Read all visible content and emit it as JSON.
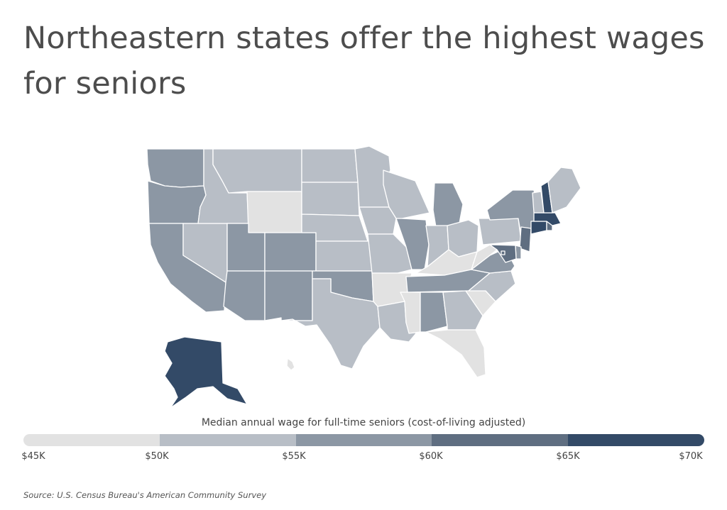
{
  "title": "Northeastern states offer the highest wages for seniors",
  "legend": {
    "title": "Median annual wage for full-time seniors (cost-of-living adjusted)",
    "ticks": [
      "$45K",
      "$50K",
      "$55K",
      "$60K",
      "$65K",
      "$70K"
    ],
    "colors": [
      "#e2e2e2",
      "#b8bec6",
      "#8c97a4",
      "#5f6e81",
      "#334a67"
    ]
  },
  "source": "Source:  U.S. Census Bureau's American Community Survey",
  "map_data": {
    "type": "choropleth",
    "bins": [
      "$45K-$50K",
      "$50K-$55K",
      "$55K-$60K",
      "$60K-$65K",
      "$65K-$70K"
    ],
    "states": {
      "WA": 2,
      "OR": 2,
      "CA": 2,
      "NV": 1,
      "ID": 1,
      "MT": 1,
      "WY": 0,
      "UT": 2,
      "CO": 2,
      "AZ": 2,
      "NM": 2,
      "ND": 1,
      "SD": 1,
      "NE": 1,
      "KS": 1,
      "OK": 2,
      "TX": 1,
      "MN": 1,
      "IA": 1,
      "MO": 1,
      "AR": 0,
      "LA": 1,
      "WI": 1,
      "IL": 2,
      "MI": 2,
      "IN": 1,
      "OH": 1,
      "KY": 0,
      "TN": 2,
      "MS": 0,
      "AL": 2,
      "GA": 1,
      "FL": 0,
      "SC": 0,
      "NC": 1,
      "VA": 2,
      "WV": 0,
      "PA": 1,
      "NY": 2,
      "NJ": 3,
      "DE": 2,
      "MD": 3,
      "CT": 4,
      "RI": 3,
      "MA": 4,
      "VT": 1,
      "NH": 4,
      "ME": 1,
      "AK": 4,
      "HI": 0,
      "DC": 3
    }
  }
}
